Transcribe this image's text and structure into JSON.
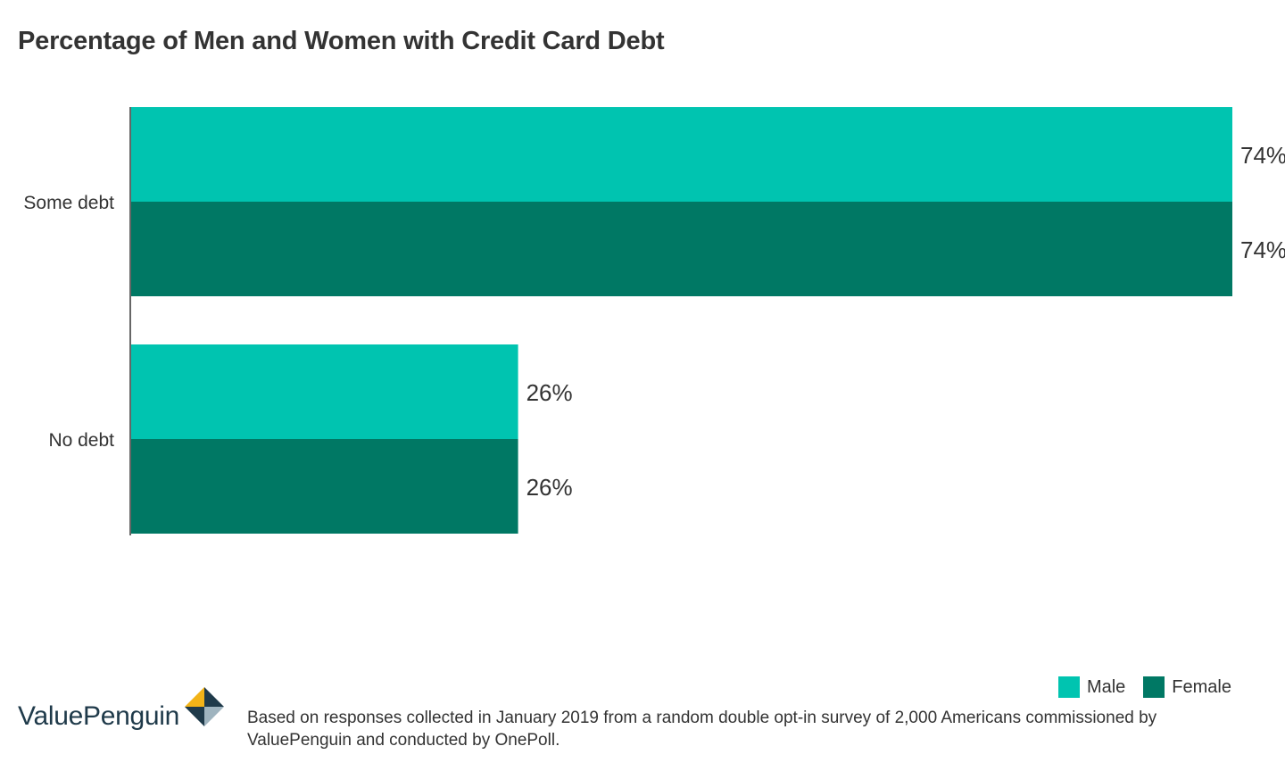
{
  "title": "Percentage of Men and Women with Credit Card Debt",
  "chart_data": {
    "type": "bar",
    "orientation": "horizontal",
    "title": "Percentage of Men and Women with Credit Card Debt",
    "categories": [
      "Some debt",
      "No debt"
    ],
    "series": [
      {
        "name": "Male",
        "color": "#00c4b0",
        "values": [
          74,
          26
        ]
      },
      {
        "name": "Female",
        "color": "#007864",
        "values": [
          74,
          26
        ]
      }
    ],
    "value_suffix": "%",
    "xlim": [
      0,
      74
    ],
    "grid": false,
    "legend": "bottom-right"
  },
  "legend": {
    "items": [
      {
        "label": "Male",
        "color": "#00c4b0"
      },
      {
        "label": "Female",
        "color": "#007864"
      }
    ]
  },
  "footer": {
    "brand": "ValuePenguin",
    "brand_icon": "valuepenguin-logo-icon",
    "note": "Based on responses collected in January 2019 from a random double opt-in survey of 2,000 Americans commissioned by ValuePenguin and conducted by OnePoll."
  }
}
